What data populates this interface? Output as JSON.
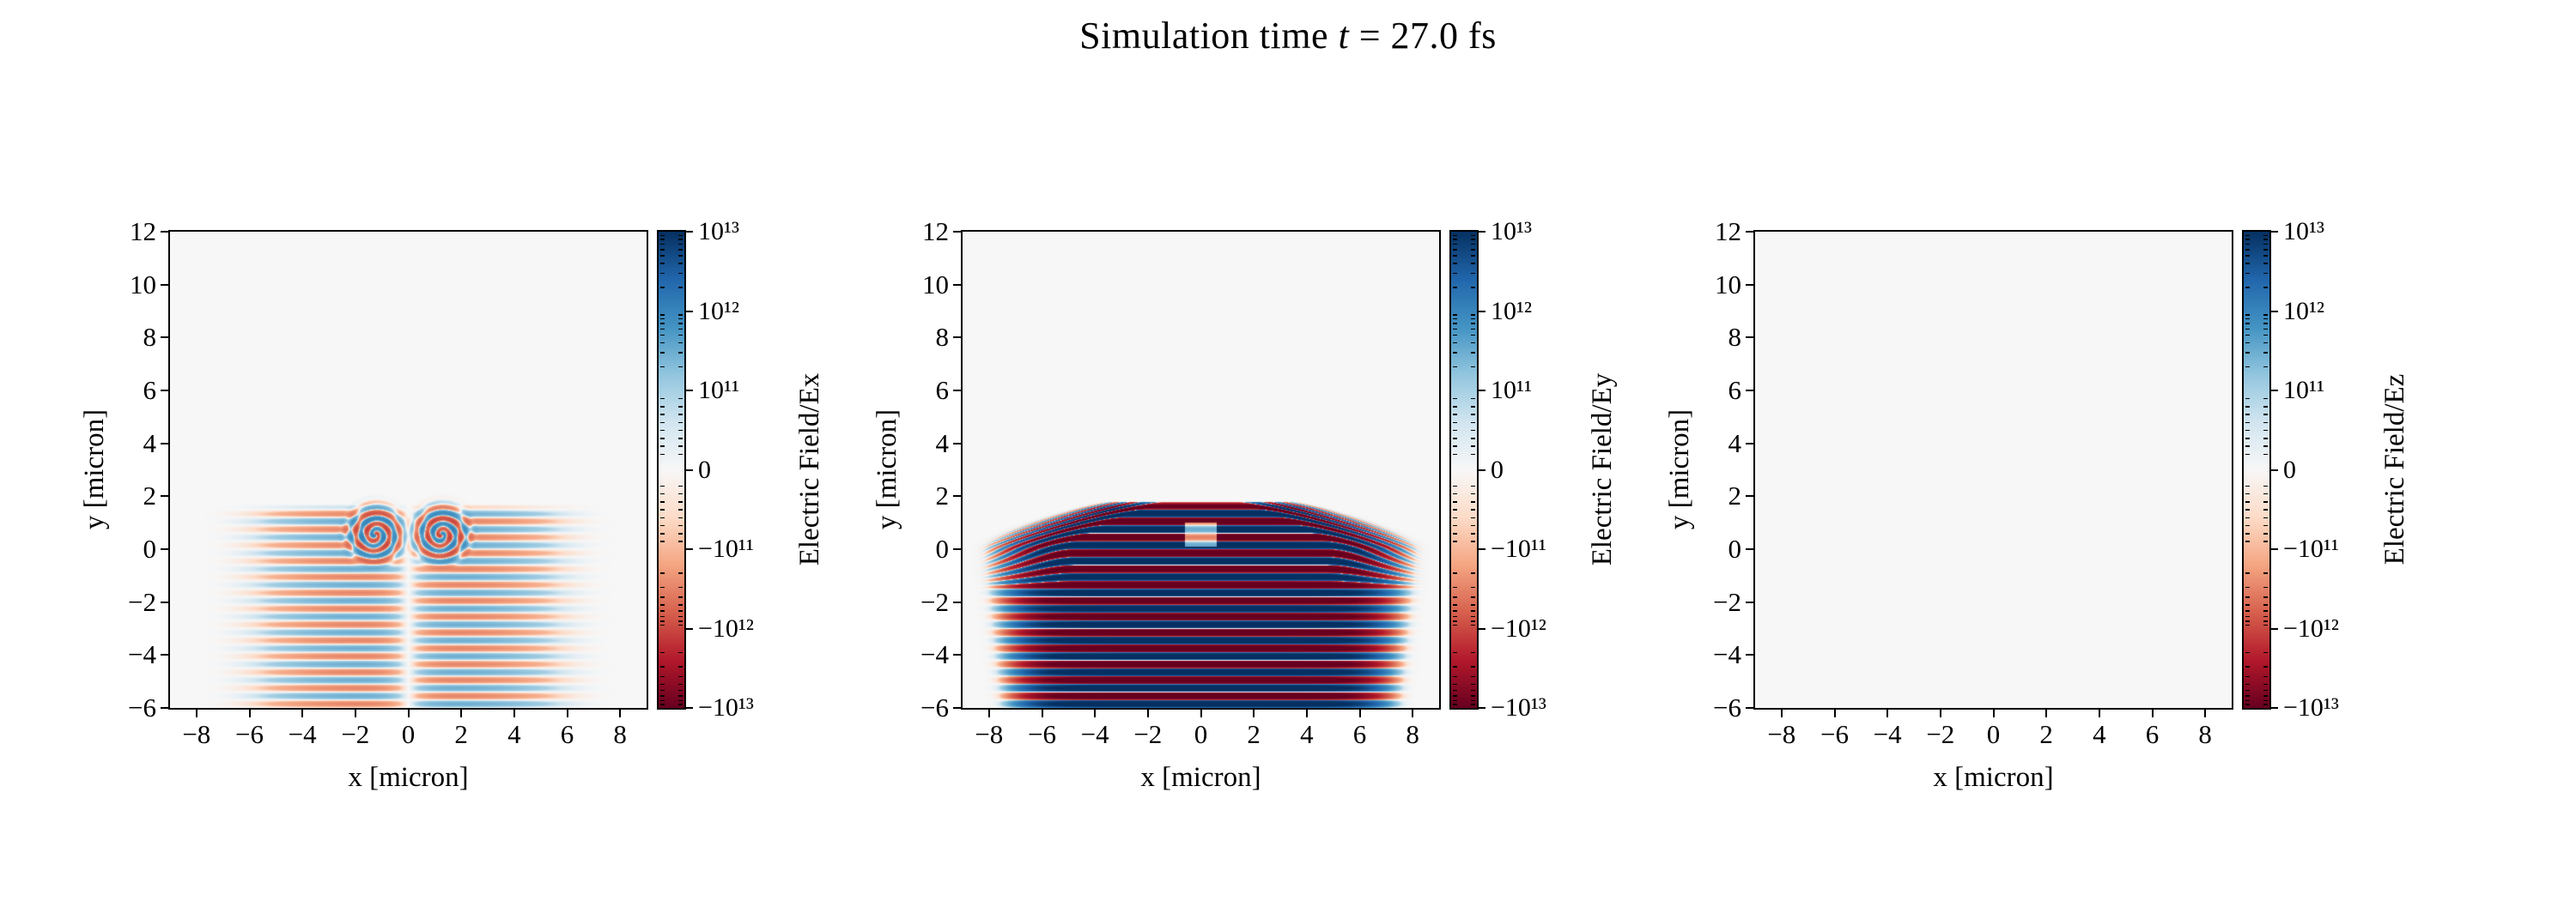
{
  "figure": {
    "title": {
      "prefix": "Simulation time ",
      "var": "t",
      "suffix": " = 27.0 fs"
    }
  },
  "axes": {
    "x_label": "x [micron]",
    "y_label": "y [micron]",
    "x_range": [
      -9,
      9
    ],
    "y_range": [
      -6,
      12
    ],
    "x_tick_values": [
      -8,
      -6,
      -4,
      -2,
      0,
      2,
      4,
      6,
      8
    ],
    "x_tick_labels": [
      "−8",
      "−6",
      "−4",
      "−2",
      "0",
      "2",
      "4",
      "6",
      "8"
    ],
    "y_tick_values": [
      12,
      10,
      8,
      6,
      4,
      2,
      0,
      -2,
      -4,
      -6
    ],
    "y_tick_labels": [
      "12",
      "10",
      "8",
      "6",
      "4",
      "2",
      "0",
      "−2",
      "−4",
      "−6"
    ]
  },
  "colorbar": {
    "scale": "symlog",
    "vmax": 10000000000000.0,
    "vmin": -10000000000000.0,
    "linthresh": 100000000000.0,
    "colormap": "RdBu",
    "colors": [
      "#67001f",
      "#b2182b",
      "#d6604d",
      "#f4a582",
      "#fddbc7",
      "#f7f7f7",
      "#d1e5f0",
      "#92c5de",
      "#4393c3",
      "#2166ac",
      "#053061"
    ],
    "tick_values": [
      10000000000000.0,
      1000000000000.0,
      100000000000.0,
      0,
      -100000000000.0,
      -1000000000000.0,
      -10000000000000.0
    ],
    "tick_labels": [
      "10¹³",
      "10¹²",
      "10¹¹",
      "0",
      "−10¹¹",
      "−10¹²",
      "−10¹³"
    ]
  },
  "chart_data": [
    {
      "type": "heatmap",
      "name": "Ex",
      "title": "",
      "colorbar_label": "Electric Field/Ex",
      "xlabel": "x [micron]",
      "ylabel": "y [micron]",
      "x_range": [
        -9,
        9
      ],
      "y_range": [
        -6,
        12
      ],
      "scale": {
        "type": "symlog",
        "vmax": 10000000000000.0,
        "vmin": -10000000000000.0,
        "linthresh": 100000000000.0
      },
      "field": {
        "kind": "laser_Ex",
        "description": "Weak antisymmetric horizontal wave stripes filling y=-6..1.7, x=-7..7, with a white seam at x=0 and two vortex-like ring features near (±1.25, 0.55)",
        "wavelength_micron": 0.6,
        "pulse_top_y": 1.7,
        "pulse_bottom_y": -6,
        "half_width": 6.2,
        "amplitude": 350000000000.0,
        "vortices": [
          {
            "x": -1.25,
            "y": 0.55,
            "amp": -900000000000.0,
            "radius": 1.0
          },
          {
            "x": 1.25,
            "y": 0.55,
            "amp": 900000000000.0,
            "radius": 1.0
          }
        ]
      }
    },
    {
      "type": "heatmap",
      "name": "Ey",
      "title": "",
      "colorbar_label": "Electric Field/Ey",
      "xlabel": "x [micron]",
      "ylabel": "y [micron]",
      "x_range": [
        -9,
        9
      ],
      "y_range": [
        -6,
        12
      ],
      "scale": {
        "type": "symlog",
        "vmax": 10000000000000.0,
        "vmin": -10000000000000.0,
        "linthresh": 100000000000.0
      },
      "field": {
        "kind": "laser_Ey",
        "description": "Saturated alternating dark-blue/dark-red horizontal laser stripes filling y=-6..1.8, narrowing toward the top, with a small field-free notch (target) at x=-0.6..0.6, y=0.1..1.0",
        "wavelength_micron": 0.6,
        "pulse_top_y": 1.8,
        "pulse_bottom_y": -6,
        "half_width": 6.6,
        "amplitude": 16000000000000.0,
        "notch": {
          "x": [
            -0.6,
            0.6
          ],
          "y": [
            0.1,
            1.0
          ]
        }
      }
    },
    {
      "type": "heatmap",
      "name": "Ez",
      "title": "",
      "colorbar_label": "Electric Field/Ez",
      "xlabel": "x [micron]",
      "ylabel": "y [micron]",
      "x_range": [
        -9,
        9
      ],
      "y_range": [
        -6,
        12
      ],
      "scale": {
        "type": "symlog",
        "vmax": 10000000000000.0,
        "vmin": -10000000000000.0,
        "linthresh": 100000000000.0
      },
      "field": {
        "kind": "zero",
        "description": "Ez is zero everywhere (uniform background)"
      }
    }
  ]
}
